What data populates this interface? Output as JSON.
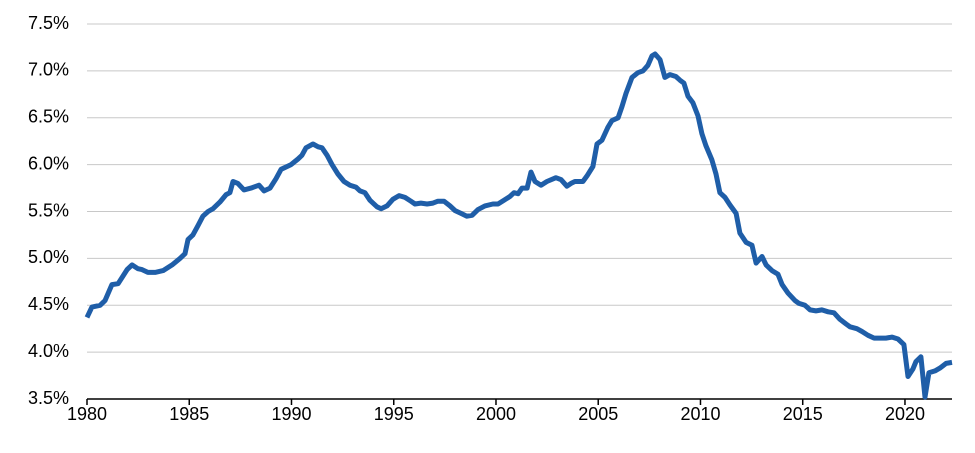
{
  "chart_data": {
    "type": "line",
    "x": [
      1980.0,
      1980.24,
      1980.64,
      1980.88,
      1981.22,
      1981.52,
      1981.96,
      1982.2,
      1982.49,
      1982.69,
      1982.98,
      1983.33,
      1983.72,
      1984.16,
      1984.55,
      1984.79,
      1984.94,
      1985.18,
      1985.43,
      1985.67,
      1985.92,
      1986.16,
      1986.5,
      1986.8,
      1986.99,
      1987.14,
      1987.38,
      1987.68,
      1988.02,
      1988.41,
      1988.66,
      1988.95,
      1989.24,
      1989.49,
      1989.98,
      1990.32,
      1990.51,
      1990.71,
      1991.05,
      1991.3,
      1991.49,
      1991.74,
      1991.98,
      1992.27,
      1992.57,
      1992.86,
      1993.15,
      1993.35,
      1993.59,
      1993.84,
      1994.18,
      1994.38,
      1994.67,
      1994.96,
      1995.26,
      1995.55,
      1995.84,
      1996.04,
      1996.33,
      1996.63,
      1996.92,
      1997.16,
      1997.46,
      1997.75,
      1998.0,
      1998.29,
      1998.58,
      1998.83,
      1999.12,
      1999.46,
      1999.85,
      2000.1,
      2000.39,
      2000.68,
      2000.88,
      2001.08,
      2001.27,
      2001.52,
      2001.71,
      2001.91,
      2002.2,
      2002.49,
      2002.93,
      2003.18,
      2003.47,
      2003.67,
      2003.86,
      2004.25,
      2004.45,
      2004.74,
      2004.94,
      2005.18,
      2005.48,
      2005.67,
      2005.97,
      2006.16,
      2006.36,
      2006.65,
      2006.94,
      2007.19,
      2007.43,
      2007.63,
      2007.78,
      2008.02,
      2008.26,
      2008.51,
      2008.8,
      2009.0,
      2009.19,
      2009.39,
      2009.63,
      2009.88,
      2010.07,
      2010.27,
      2010.56,
      2010.76,
      2010.95,
      2011.2,
      2011.44,
      2011.74,
      2011.93,
      2012.23,
      2012.52,
      2012.72,
      2013.01,
      2013.21,
      2013.5,
      2013.79,
      2013.99,
      2014.28,
      2014.62,
      2014.82,
      2015.11,
      2015.36,
      2015.65,
      2015.94,
      2016.24,
      2016.53,
      2016.82,
      2017.12,
      2017.31,
      2017.65,
      2017.9,
      2018.19,
      2018.49,
      2018.78,
      2019.07,
      2019.37,
      2019.66,
      2019.95,
      2020.15,
      2020.39,
      2020.54,
      2020.78,
      2020.98,
      2021.17,
      2021.47,
      2021.71,
      2022.01,
      2022.3
    ],
    "series": [
      {
        "color": "#1f5ea8",
        "values": [
          4.37,
          4.48,
          4.5,
          4.55,
          4.72,
          4.73,
          4.88,
          4.93,
          4.89,
          4.88,
          4.85,
          4.85,
          4.87,
          4.93,
          5.0,
          5.05,
          5.2,
          5.25,
          5.35,
          5.45,
          5.5,
          5.53,
          5.6,
          5.68,
          5.7,
          5.82,
          5.8,
          5.73,
          5.75,
          5.78,
          5.72,
          5.75,
          5.85,
          5.95,
          6.0,
          6.06,
          6.1,
          6.18,
          6.22,
          6.19,
          6.18,
          6.1,
          6.0,
          5.9,
          5.82,
          5.78,
          5.76,
          5.72,
          5.7,
          5.62,
          5.55,
          5.53,
          5.56,
          5.63,
          5.67,
          5.65,
          5.61,
          5.58,
          5.59,
          5.58,
          5.59,
          5.61,
          5.61,
          5.56,
          5.51,
          5.48,
          5.45,
          5.46,
          5.52,
          5.56,
          5.58,
          5.58,
          5.62,
          5.66,
          5.7,
          5.69,
          5.75,
          5.75,
          5.92,
          5.82,
          5.78,
          5.82,
          5.86,
          5.84,
          5.77,
          5.8,
          5.82,
          5.82,
          5.88,
          5.98,
          6.22,
          6.26,
          6.4,
          6.47,
          6.5,
          6.62,
          6.76,
          6.93,
          6.98,
          7.0,
          7.06,
          7.16,
          7.18,
          7.12,
          6.93,
          6.96,
          6.94,
          6.9,
          6.87,
          6.73,
          6.66,
          6.52,
          6.33,
          6.2,
          6.05,
          5.9,
          5.7,
          5.65,
          5.57,
          5.48,
          5.27,
          5.17,
          5.14,
          4.95,
          5.02,
          4.93,
          4.87,
          4.83,
          4.72,
          4.63,
          4.55,
          4.52,
          4.5,
          4.45,
          4.44,
          4.45,
          4.43,
          4.42,
          4.35,
          4.3,
          4.27,
          4.25,
          4.22,
          4.18,
          4.15,
          4.15,
          4.15,
          4.16,
          4.14,
          4.08,
          3.74,
          3.82,
          3.9,
          3.95,
          3.52,
          3.78,
          3.8,
          3.83,
          3.88,
          3.89
        ]
      }
    ],
    "xlim": [
      1980,
      2022.3
    ],
    "xticks": [
      1980,
      1985,
      1990,
      1995,
      2000,
      2005,
      2010,
      2015,
      2020
    ],
    "ylim": [
      3.5,
      7.5
    ],
    "yticks": [
      {
        "value": 3.5,
        "label": "3.5%"
      },
      {
        "value": 4.0,
        "label": "4.0%"
      },
      {
        "value": 4.5,
        "label": "4.5%"
      },
      {
        "value": 5.0,
        "label": "5.0%"
      },
      {
        "value": 5.5,
        "label": "5.5%"
      },
      {
        "value": 6.0,
        "label": "6.0%"
      },
      {
        "value": 6.5,
        "label": "6.5%"
      },
      {
        "value": 7.0,
        "label": "7.0%"
      },
      {
        "value": 7.5,
        "label": "7.5%"
      }
    ],
    "grid": true
  }
}
